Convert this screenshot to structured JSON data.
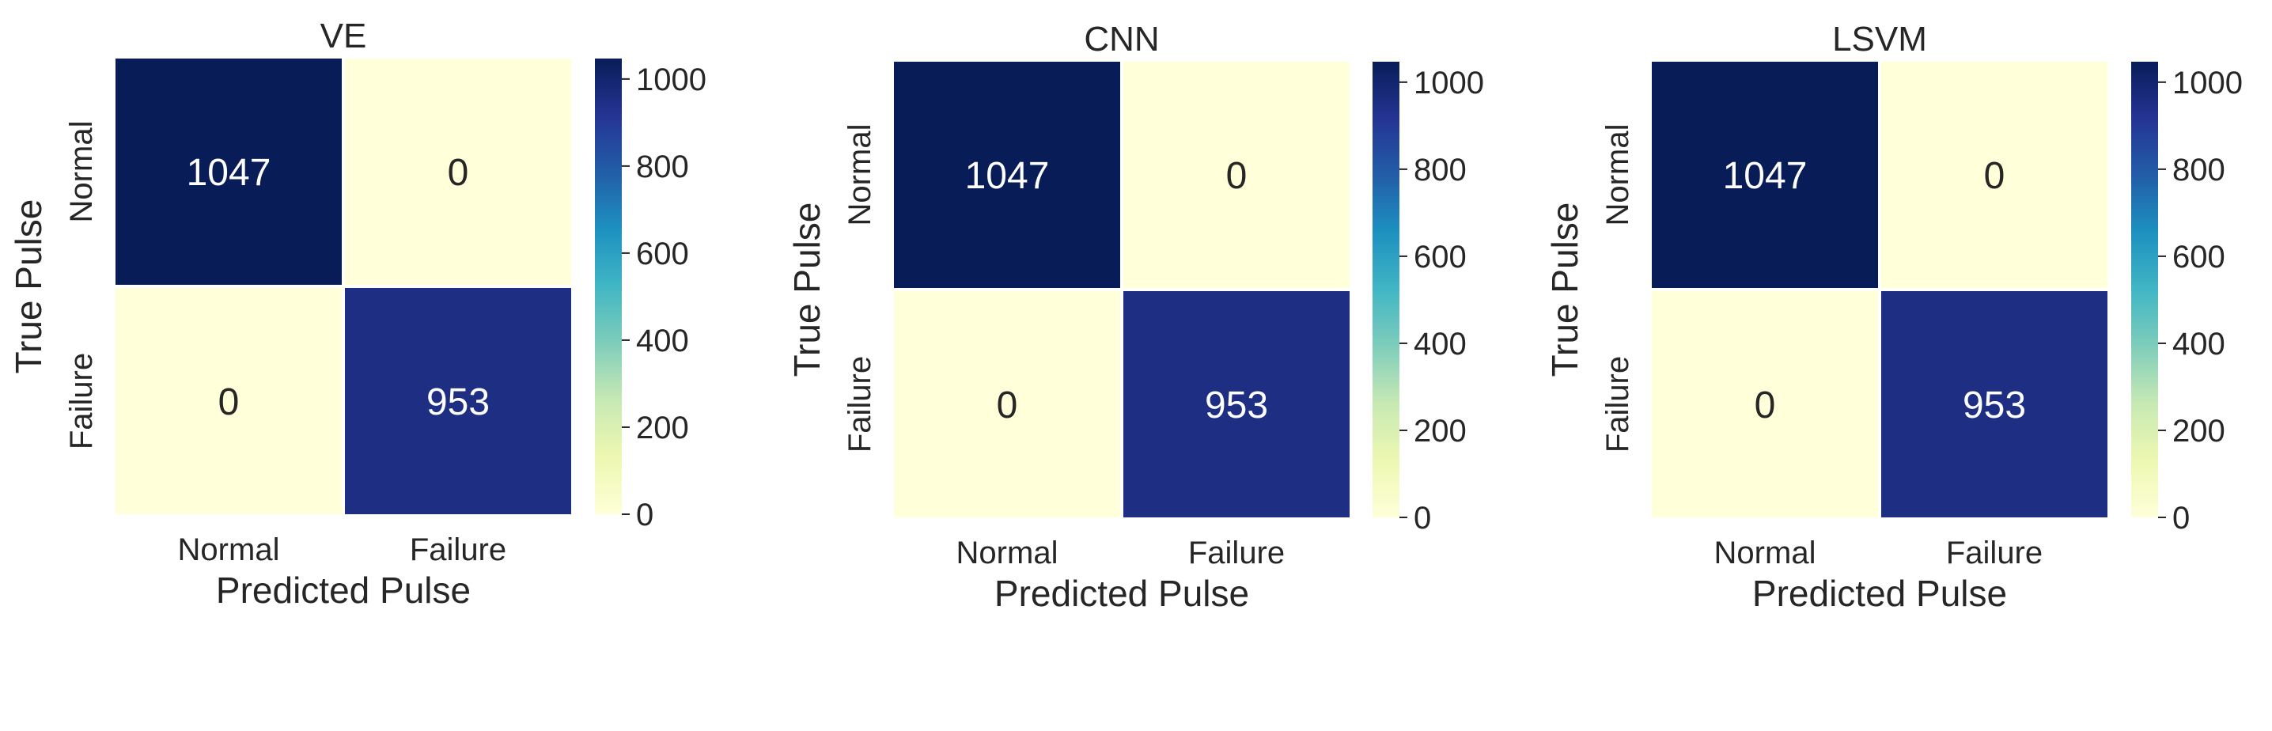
{
  "colors": {
    "scale": [
      "#ffffd9",
      "#edf8b1",
      "#c7e9b4",
      "#7fcdbb",
      "#41b6c4",
      "#1d91c0",
      "#225ea8",
      "#253494",
      "#081d58"
    ],
    "text_dark": "#262626",
    "text_light": "#ffffff"
  },
  "chart_data": [
    {
      "type": "heatmap",
      "title": "VE",
      "xlabel": "Predicted Pulse",
      "ylabel": "True Pulse",
      "x_categories": [
        "Normal",
        "Failure"
      ],
      "y_categories": [
        "Normal",
        "Failure"
      ],
      "values": [
        [
          1047,
          0
        ],
        [
          0,
          953
        ]
      ],
      "labels": [
        [
          "1047",
          "0"
        ],
        [
          "0",
          "953"
        ]
      ],
      "colorbar": {
        "range": [
          0,
          1047
        ],
        "ticks": [
          0,
          200,
          400,
          600,
          800,
          1000
        ],
        "tick_labels": [
          "0",
          "200",
          "400",
          "600",
          "800",
          "1000"
        ]
      },
      "colormap": "YlGnBu"
    },
    {
      "type": "heatmap",
      "title": "CNN",
      "xlabel": "Predicted Pulse",
      "ylabel": "True Pulse",
      "x_categories": [
        "Normal",
        "Failure"
      ],
      "y_categories": [
        "Normal",
        "Failure"
      ],
      "values": [
        [
          1047,
          0
        ],
        [
          0,
          953
        ]
      ],
      "labels": [
        [
          "1047",
          "0"
        ],
        [
          "0",
          "953"
        ]
      ],
      "colorbar": {
        "range": [
          0,
          1047
        ],
        "ticks": [
          0,
          200,
          400,
          600,
          800,
          1000
        ],
        "tick_labels": [
          "0",
          "200",
          "400",
          "600",
          "800",
          "1000"
        ]
      },
      "colormap": "YlGnBu"
    },
    {
      "type": "heatmap",
      "title": "LSVM",
      "xlabel": "Predicted Pulse",
      "ylabel": "True Pulse",
      "x_categories": [
        "Normal",
        "Failure"
      ],
      "y_categories": [
        "Normal",
        "Failure"
      ],
      "values": [
        [
          1047,
          0
        ],
        [
          0,
          953
        ]
      ],
      "labels": [
        [
          "1047",
          "0"
        ],
        [
          "0",
          "953"
        ]
      ],
      "colorbar": {
        "range": [
          0,
          1047
        ],
        "ticks": [
          0,
          200,
          400,
          600,
          800,
          1000
        ],
        "tick_labels": [
          "0",
          "200",
          "400",
          "600",
          "800",
          "1000"
        ]
      },
      "colormap": "YlGnBu"
    }
  ]
}
